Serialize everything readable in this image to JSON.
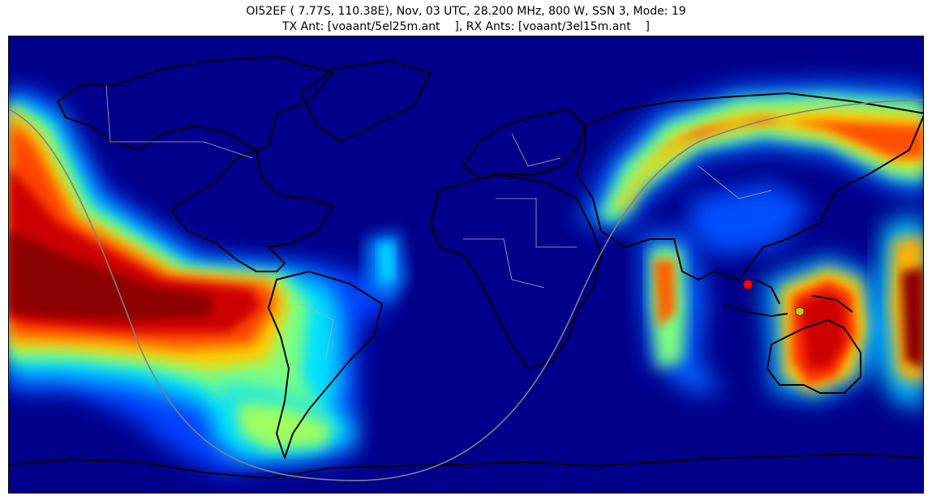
{
  "title": {
    "line1": "OI52EF ( 7.77S, 110.38E), Nov, 03 UTC, 28.200 MHz, 800 W, SSN 3, Mode: 19",
    "line2": "TX Ant: [voaant/5el25m.ant    ], RX Ants: [voaant/3el15m.ant    ]"
  },
  "map": {
    "projection": "equirectangular",
    "background_color": "#00008b",
    "colormap": "jet",
    "terminator_color": "#808080",
    "coastline_color": "#000000",
    "border_color": "#b0b0b0",
    "tx_marker": {
      "lat": -7.77,
      "lon": 110.38,
      "color": "#ff0000",
      "shape": "circle"
    },
    "rx_marker": {
      "lat": -24.0,
      "lon": 133.0,
      "color": "#cccc00",
      "shape": "hexagon"
    }
  }
}
